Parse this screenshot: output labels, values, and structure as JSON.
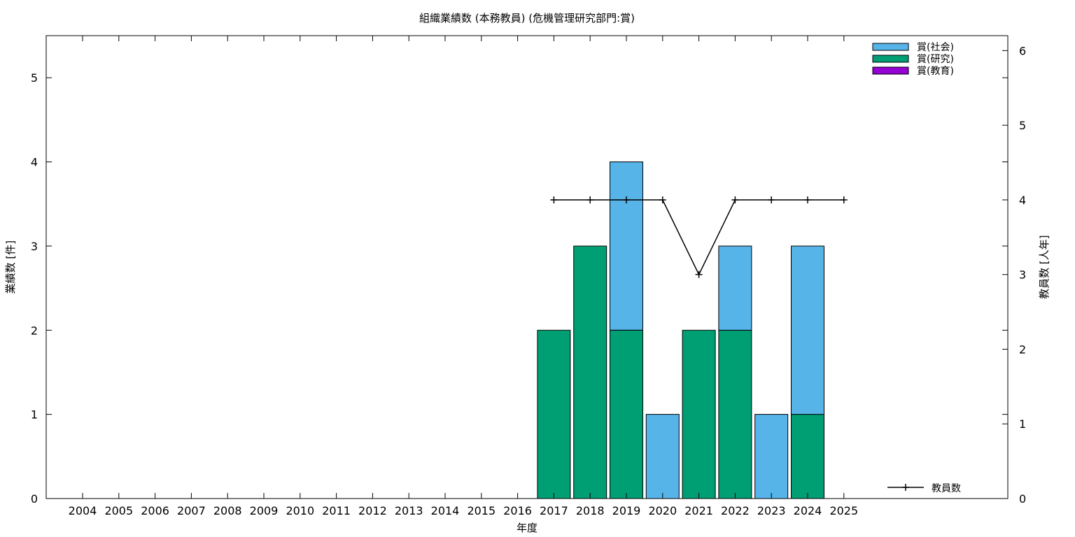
{
  "chart_data": {
    "type": "bar",
    "title": "組織業績数 (本務教員) (危機管理研究部門:賞)",
    "xlabel": "年度",
    "ylabel": "業績数 [件]",
    "y2label": "教員数 [人年]",
    "ylim": [
      0,
      5.5
    ],
    "y2lim": [
      0,
      6.2
    ],
    "yticks": [
      0,
      1,
      2,
      3,
      4,
      5
    ],
    "y2ticks": [
      0,
      1,
      2,
      3,
      4,
      5,
      6
    ],
    "categories": [
      "2004",
      "2005",
      "2006",
      "2007",
      "2008",
      "2009",
      "2010",
      "2011",
      "2012",
      "2013",
      "2014",
      "2015",
      "2016",
      "2017",
      "2018",
      "2019",
      "2020",
      "2021",
      "2022",
      "2023",
      "2024",
      "2025"
    ],
    "stacked": true,
    "series": [
      {
        "name": "賞(研究)",
        "color": "#009e73",
        "values": [
          0,
          0,
          0,
          0,
          0,
          0,
          0,
          0,
          0,
          0,
          0,
          0,
          0,
          2,
          3,
          2,
          0,
          2,
          2,
          0,
          1,
          0
        ]
      },
      {
        "name": "賞(教育)",
        "color": "#9400d3",
        "values": [
          0,
          0,
          0,
          0,
          0,
          0,
          0,
          0,
          0,
          0,
          0,
          0,
          0,
          0,
          0,
          0,
          0,
          0,
          0,
          0,
          0,
          0
        ]
      },
      {
        "name": "賞(社会)",
        "color": "#56b4e9",
        "values": [
          0,
          0,
          0,
          0,
          0,
          0,
          0,
          0,
          0,
          0,
          0,
          0,
          0,
          0,
          0,
          2,
          1,
          0,
          1,
          1,
          2,
          0
        ]
      }
    ],
    "legend_order": [
      "賞(社会)",
      "賞(研究)",
      "賞(教育)"
    ],
    "line_series": {
      "name": "教員数",
      "color": "#000000",
      "axis": "y2",
      "x": [
        "2017",
        "2018",
        "2019",
        "2020",
        "2021",
        "2022",
        "2023",
        "2024",
        "2025"
      ],
      "values": [
        4,
        4,
        4,
        4,
        3,
        4,
        4,
        4,
        4
      ]
    },
    "legend_position": "top-right",
    "grid": false
  }
}
